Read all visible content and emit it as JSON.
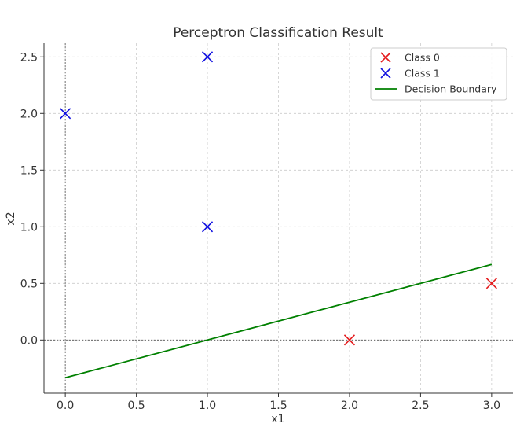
{
  "chart_data": {
    "type": "scatter",
    "title": "Perceptron Classification Result",
    "xlabel": "x1",
    "ylabel": "x2",
    "xlim": [
      -0.15,
      3.15
    ],
    "ylim": [
      -0.47,
      2.62
    ],
    "xticks": [
      0.0,
      0.5,
      1.0,
      1.5,
      2.0,
      2.5,
      3.0
    ],
    "xtick_labels": [
      "0.0",
      "0.5",
      "1.0",
      "1.5",
      "2.0",
      "2.5",
      "3.0"
    ],
    "yticks": [
      0.0,
      0.5,
      1.0,
      1.5,
      2.0,
      2.5
    ],
    "ytick_labels": [
      "0.0",
      "0.5",
      "1.0",
      "1.5",
      "2.0",
      "2.5"
    ],
    "grid": true,
    "legend_position": "top-right",
    "series": [
      {
        "name": "Class 0",
        "kind": "scatter",
        "marker": "x",
        "color": "#e41a1c",
        "points": [
          [
            2,
            0
          ],
          [
            3,
            0.5
          ]
        ]
      },
      {
        "name": "Class 1",
        "kind": "scatter",
        "marker": "x",
        "color": "#1010e0",
        "points": [
          [
            0,
            2
          ],
          [
            1,
            1
          ],
          [
            1,
            2.5
          ]
        ]
      },
      {
        "name": "Decision Boundary",
        "kind": "line",
        "color": "#008000",
        "points": [
          [
            0,
            -0.333
          ],
          [
            3,
            0.667
          ]
        ]
      }
    ]
  }
}
